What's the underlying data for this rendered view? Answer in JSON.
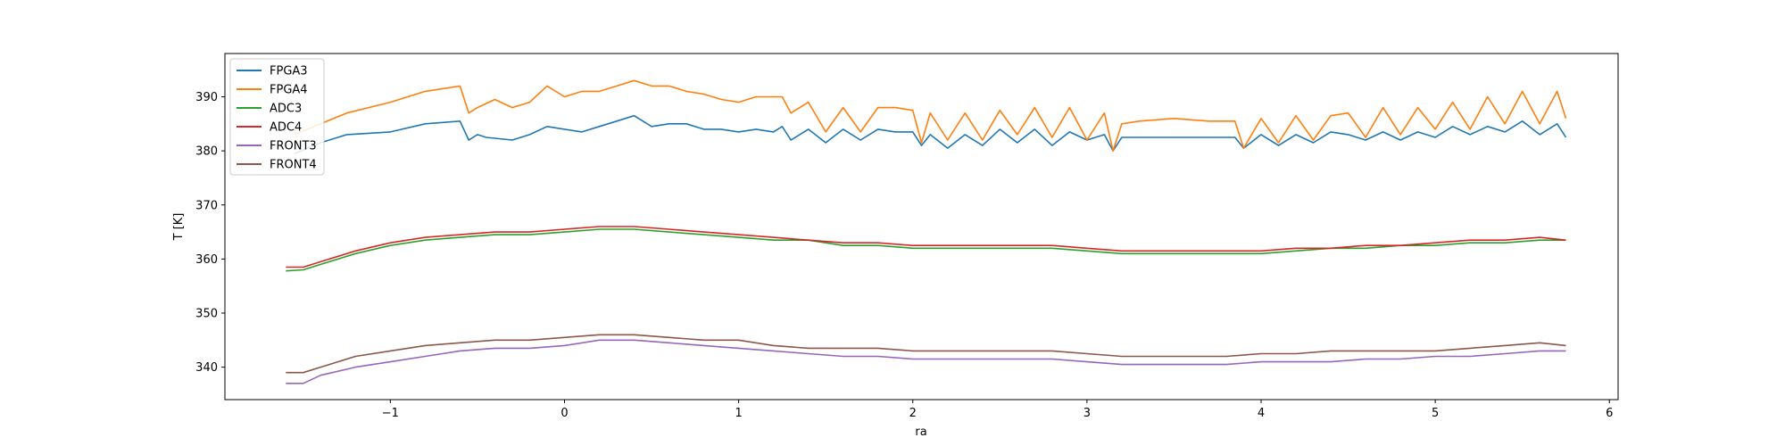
{
  "chart_data": {
    "type": "line",
    "title": "",
    "xlabel": "ra",
    "ylabel": "T [K]",
    "xlim": [
      -1.95,
      6.05
    ],
    "ylim": [
      334,
      398
    ],
    "xticks": [
      -1,
      0,
      1,
      2,
      3,
      4,
      5,
      6
    ],
    "xtick_labels": [
      "−1",
      "0",
      "1",
      "2",
      "3",
      "4",
      "5",
      "6"
    ],
    "yticks": [
      340,
      350,
      360,
      370,
      380,
      390
    ],
    "ytick_labels": [
      "340",
      "350",
      "360",
      "370",
      "380",
      "390"
    ],
    "grid": false,
    "legend_position": "upper left",
    "series": [
      {
        "name": "FPGA3",
        "color": "#1f77b4",
        "x": [
          -1.55,
          -1.4,
          -1.25,
          -1.0,
          -0.8,
          -0.6,
          -0.55,
          -0.5,
          -0.45,
          -0.3,
          -0.2,
          -0.1,
          0.0,
          0.1,
          0.2,
          0.3,
          0.4,
          0.5,
          0.6,
          0.7,
          0.8,
          0.9,
          1.0,
          1.1,
          1.2,
          1.25,
          1.3,
          1.4,
          1.5,
          1.6,
          1.7,
          1.8,
          1.9,
          2.0,
          2.05,
          2.1,
          2.2,
          2.3,
          2.4,
          2.5,
          2.6,
          2.7,
          2.8,
          2.9,
          3.0,
          3.1,
          3.15,
          3.2,
          3.3,
          3.5,
          3.7,
          3.85,
          3.9,
          4.0,
          4.1,
          4.2,
          4.3,
          4.4,
          4.5,
          4.6,
          4.7,
          4.8,
          4.9,
          5.0,
          5.1,
          5.2,
          5.3,
          5.4,
          5.5,
          5.6,
          5.7,
          5.75
        ],
        "values": [
          379.5,
          381.5,
          383,
          383.5,
          385,
          385.5,
          382,
          383,
          382.5,
          382,
          383,
          384.5,
          384,
          383.5,
          384.5,
          385.5,
          386.5,
          384.5,
          385,
          385,
          384,
          384,
          383.5,
          384,
          383.5,
          384.5,
          382,
          384,
          381.5,
          384,
          382,
          384,
          383.5,
          383.5,
          381,
          383,
          380.5,
          383,
          381,
          384,
          381.5,
          384,
          381,
          383.5,
          382,
          383,
          380,
          382.5,
          382.5,
          382.5,
          382.5,
          382.5,
          380.5,
          383,
          381,
          383,
          381.5,
          383.5,
          383,
          382,
          383.5,
          382,
          383.5,
          382.5,
          384.5,
          383,
          384.5,
          383.5,
          385.5,
          383,
          385,
          382.5
        ]
      },
      {
        "name": "FPGA4",
        "color": "#ff7f0e",
        "x": [
          -1.55,
          -1.4,
          -1.25,
          -1.0,
          -0.8,
          -0.6,
          -0.55,
          -0.5,
          -0.4,
          -0.3,
          -0.2,
          -0.1,
          0.0,
          0.1,
          0.2,
          0.3,
          0.4,
          0.5,
          0.6,
          0.7,
          0.8,
          0.9,
          1.0,
          1.1,
          1.2,
          1.25,
          1.3,
          1.4,
          1.5,
          1.6,
          1.7,
          1.8,
          1.9,
          2.0,
          2.05,
          2.1,
          2.2,
          2.3,
          2.4,
          2.5,
          2.6,
          2.7,
          2.8,
          2.9,
          3.0,
          3.1,
          3.15,
          3.2,
          3.3,
          3.5,
          3.7,
          3.85,
          3.9,
          4.0,
          4.1,
          4.2,
          4.3,
          4.4,
          4.5,
          4.6,
          4.7,
          4.8,
          4.9,
          5.0,
          5.1,
          5.2,
          5.3,
          5.4,
          5.5,
          5.6,
          5.7,
          5.75
        ],
        "values": [
          383,
          385,
          387,
          389,
          391,
          392,
          387,
          388,
          389.5,
          388,
          389,
          392,
          390,
          391,
          391,
          392,
          393,
          392,
          392,
          391,
          390.5,
          389.5,
          389,
          390,
          390,
          390,
          387,
          389,
          383.5,
          388,
          383.5,
          388,
          388,
          387.5,
          381.5,
          387,
          382,
          387,
          382,
          387.5,
          383,
          388,
          382.5,
          388,
          382,
          387,
          380,
          385,
          385.5,
          386,
          385.5,
          385.5,
          380.5,
          386,
          381.5,
          386.5,
          382,
          386.5,
          387,
          382.5,
          388,
          383,
          388,
          384,
          389,
          384,
          390,
          385,
          391,
          385,
          391,
          386
        ]
      },
      {
        "name": "ADC3",
        "color": "#2ca02c",
        "x": [
          -1.6,
          -1.5,
          -1.4,
          -1.2,
          -1.0,
          -0.8,
          -0.6,
          -0.4,
          -0.2,
          0.0,
          0.2,
          0.4,
          0.6,
          0.8,
          1.0,
          1.2,
          1.4,
          1.6,
          1.8,
          2.0,
          2.2,
          2.4,
          2.6,
          2.8,
          3.0,
          3.2,
          3.4,
          3.6,
          3.8,
          4.0,
          4.2,
          4.4,
          4.6,
          4.8,
          5.0,
          5.2,
          5.4,
          5.6,
          5.75
        ],
        "values": [
          357.8,
          358,
          359,
          361,
          362.5,
          363.5,
          364,
          364.5,
          364.5,
          365,
          365.5,
          365.5,
          365,
          364.5,
          364,
          363.5,
          363.5,
          362.5,
          362.5,
          362,
          362,
          362,
          362,
          362,
          361.5,
          361,
          361,
          361,
          361,
          361,
          361.5,
          362,
          362,
          362.5,
          362.5,
          363,
          363,
          363.5,
          363.5
        ]
      },
      {
        "name": "ADC4",
        "color": "#d62728",
        "x": [
          -1.6,
          -1.5,
          -1.4,
          -1.2,
          -1.0,
          -0.8,
          -0.6,
          -0.4,
          -0.2,
          0.0,
          0.2,
          0.4,
          0.6,
          0.8,
          1.0,
          1.2,
          1.4,
          1.6,
          1.8,
          2.0,
          2.2,
          2.4,
          2.6,
          2.8,
          3.0,
          3.2,
          3.4,
          3.6,
          3.8,
          4.0,
          4.2,
          4.4,
          4.6,
          4.8,
          5.0,
          5.2,
          5.4,
          5.6,
          5.75
        ],
        "values": [
          358.5,
          358.5,
          359.5,
          361.5,
          363,
          364,
          364.5,
          365,
          365,
          365.5,
          366,
          366,
          365.5,
          365,
          364.5,
          364,
          363.5,
          363,
          363,
          362.5,
          362.5,
          362.5,
          362.5,
          362.5,
          362,
          361.5,
          361.5,
          361.5,
          361.5,
          361.5,
          362,
          362,
          362.5,
          362.5,
          363,
          363.5,
          363.5,
          364,
          363.5
        ]
      },
      {
        "name": "FRONT3",
        "color": "#9467bd",
        "x": [
          -1.6,
          -1.5,
          -1.4,
          -1.2,
          -1.0,
          -0.8,
          -0.6,
          -0.4,
          -0.2,
          0.0,
          0.2,
          0.4,
          0.6,
          0.8,
          1.0,
          1.2,
          1.4,
          1.6,
          1.8,
          2.0,
          2.2,
          2.4,
          2.6,
          2.8,
          3.0,
          3.2,
          3.4,
          3.6,
          3.8,
          4.0,
          4.2,
          4.4,
          4.6,
          4.8,
          5.0,
          5.2,
          5.4,
          5.6,
          5.75
        ],
        "values": [
          337,
          337,
          338.5,
          340,
          341,
          342,
          343,
          343.5,
          343.5,
          344,
          345,
          345,
          344.5,
          344,
          343.5,
          343,
          342.5,
          342,
          342,
          341.5,
          341.5,
          341.5,
          341.5,
          341.5,
          341,
          340.5,
          340.5,
          340.5,
          340.5,
          341,
          341,
          341,
          341.5,
          341.5,
          342,
          342,
          342.5,
          343,
          343
        ]
      },
      {
        "name": "FRONT4",
        "color": "#8c564b",
        "x": [
          -1.6,
          -1.5,
          -1.4,
          -1.2,
          -1.0,
          -0.8,
          -0.6,
          -0.4,
          -0.2,
          0.0,
          0.2,
          0.4,
          0.6,
          0.8,
          1.0,
          1.2,
          1.4,
          1.6,
          1.8,
          2.0,
          2.2,
          2.4,
          2.6,
          2.8,
          3.0,
          3.2,
          3.4,
          3.6,
          3.8,
          4.0,
          4.2,
          4.4,
          4.6,
          4.8,
          5.0,
          5.2,
          5.4,
          5.6,
          5.75
        ],
        "values": [
          339,
          339,
          340,
          342,
          343,
          344,
          344.5,
          345,
          345,
          345.5,
          346,
          346,
          345.5,
          345,
          345,
          344,
          343.5,
          343.5,
          343.5,
          343,
          343,
          343,
          343,
          343,
          342.5,
          342,
          342,
          342,
          342,
          342.5,
          342.5,
          343,
          343,
          343,
          343,
          343.5,
          344,
          344.5,
          344
        ]
      }
    ]
  }
}
